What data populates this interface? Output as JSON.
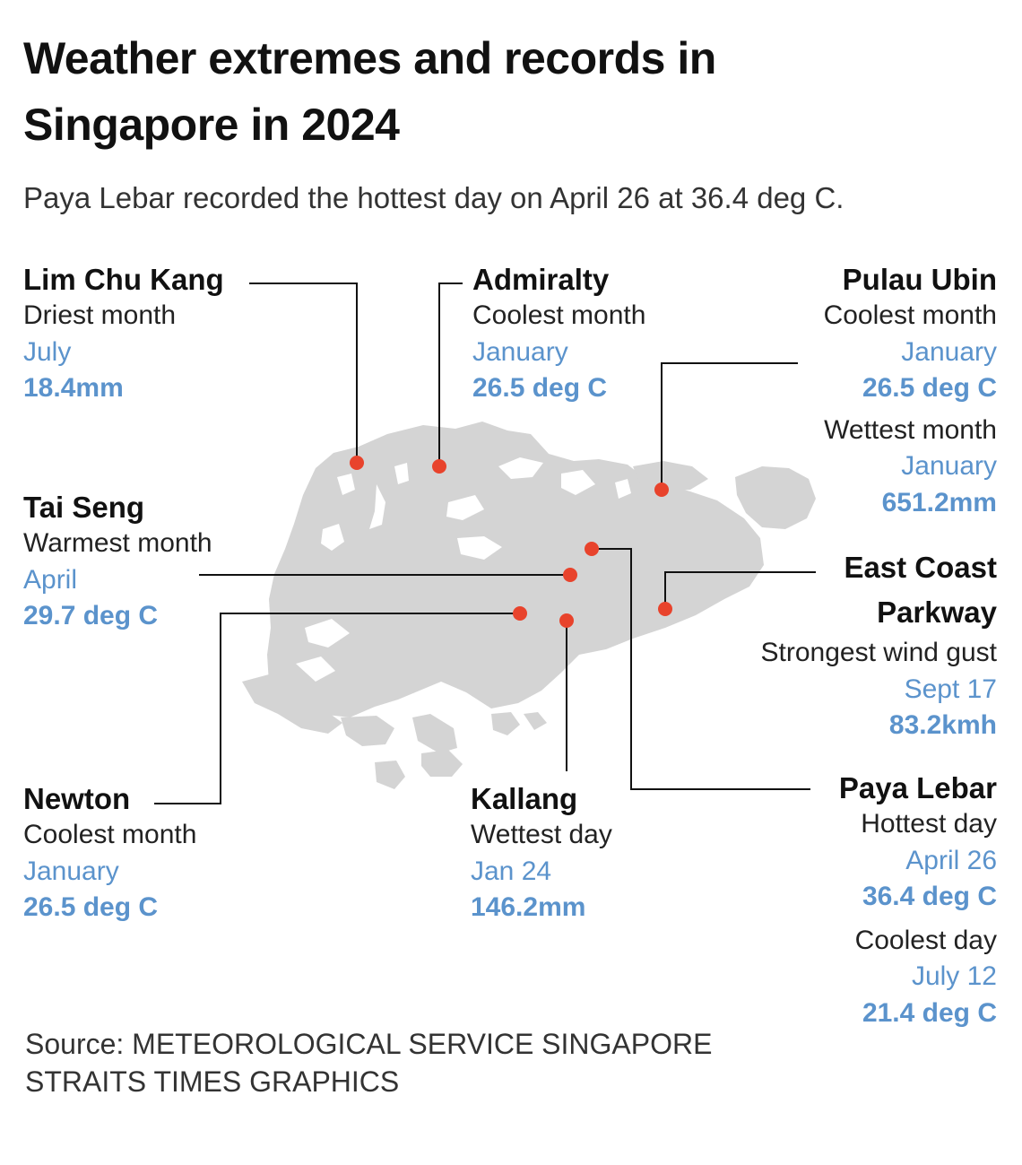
{
  "header": {
    "title": "Weather extremes and records in Singapore in 2024",
    "subtitle": "Paya Lebar recorded the hottest day on April 26 at 36.4 deg C."
  },
  "colors": {
    "land": "#d4d4d4",
    "marker": "#e8432c",
    "accent_value": "#5b93cc",
    "leader_line": "#111111"
  },
  "callouts": {
    "lim_chu_kang": {
      "location": "Lim Chu Kang",
      "label": "Driest month",
      "when": "July",
      "value": "18.4mm"
    },
    "admiralty": {
      "location": "Admiralty",
      "label": "Coolest month",
      "when": "January",
      "value": "26.5 deg C"
    },
    "pulau_ubin": {
      "location": "Pulau Ubin",
      "label_1": "Coolest month",
      "when_1": "January",
      "value_1": "26.5 deg C",
      "label_2": "Wettest month",
      "when_2": "January",
      "value_2": "651.2mm"
    },
    "tai_seng": {
      "location": "Tai Seng",
      "label": "Warmest month",
      "when": "April",
      "value": "29.7 deg C"
    },
    "east_coast_parkway": {
      "location_line_1": "East Coast",
      "location_line_2": "Parkway",
      "label": "Strongest wind gust",
      "when": "Sept 17",
      "value": "83.2kmh"
    },
    "newton": {
      "location": "Newton",
      "label": "Coolest month",
      "when": "January",
      "value": "26.5 deg C"
    },
    "kallang": {
      "location": "Kallang",
      "label": "Wettest day",
      "when": "Jan 24",
      "value": "146.2mm"
    },
    "paya_lebar": {
      "location": "Paya Lebar",
      "label_1": "Hottest day",
      "when_1": "April 26",
      "value_1": "36.4 deg C",
      "label_2": "Coolest day",
      "when_2": "July 12",
      "value_2": "21.4 deg C"
    }
  },
  "footer": {
    "source": "Source: METEOROLOGICAL SERVICE SINGAPORE",
    "credit": "STRAITS TIMES GRAPHICS"
  }
}
